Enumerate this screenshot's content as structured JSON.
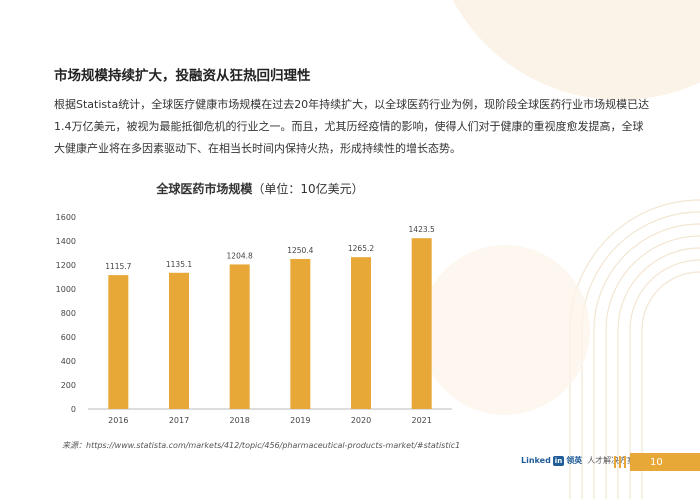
{
  "heading": "市场规模持续扩大，投融资从狂热回归理性",
  "intro": "根据Statista统计，全球医疗健康市场规模在过去20年持续扩大，以全球医药行业为例，现阶段全球医药行业市场规模已达1.4万亿美元，被视为最能抵御危机的行业之一。而且，尤其历经疫情的影响，使得人们对于健康的重视度愈发提高，全球大健康产业将在多因素驱动下、在相当长时间内保持火热，形成持续性的增长态势。",
  "chart_data": {
    "type": "bar",
    "title": "全球医药市场规模",
    "unit_note": "（单位：10亿美元）",
    "categories": [
      "2016",
      "2017",
      "2018",
      "2019",
      "2020",
      "2021"
    ],
    "values": [
      1115.7,
      1135.1,
      1204.8,
      1250.4,
      1265.2,
      1423.5
    ],
    "value_labels": [
      "1115.7",
      "1135.1",
      "1204.8",
      "1250.4",
      "1265.2",
      "1423.5"
    ],
    "ylim": [
      0,
      1600
    ],
    "yticks": [
      0,
      200,
      400,
      600,
      800,
      1000,
      1200,
      1400,
      1600
    ],
    "grid": false,
    "bar_color": "#e8a838",
    "xlabel": "",
    "ylabel": ""
  },
  "source": "来源：https://www.statista.com/markets/412/topic/456/pharmaceutical-products-market/#statistic1",
  "footer": {
    "brand_linked": "Linked",
    "brand_in": "in",
    "brand_cn": "领英",
    "brand_tag": "人才解决方案",
    "page_number": "10"
  },
  "colors": {
    "accent": "#e8a838",
    "decor_light": "#f8eee0"
  }
}
